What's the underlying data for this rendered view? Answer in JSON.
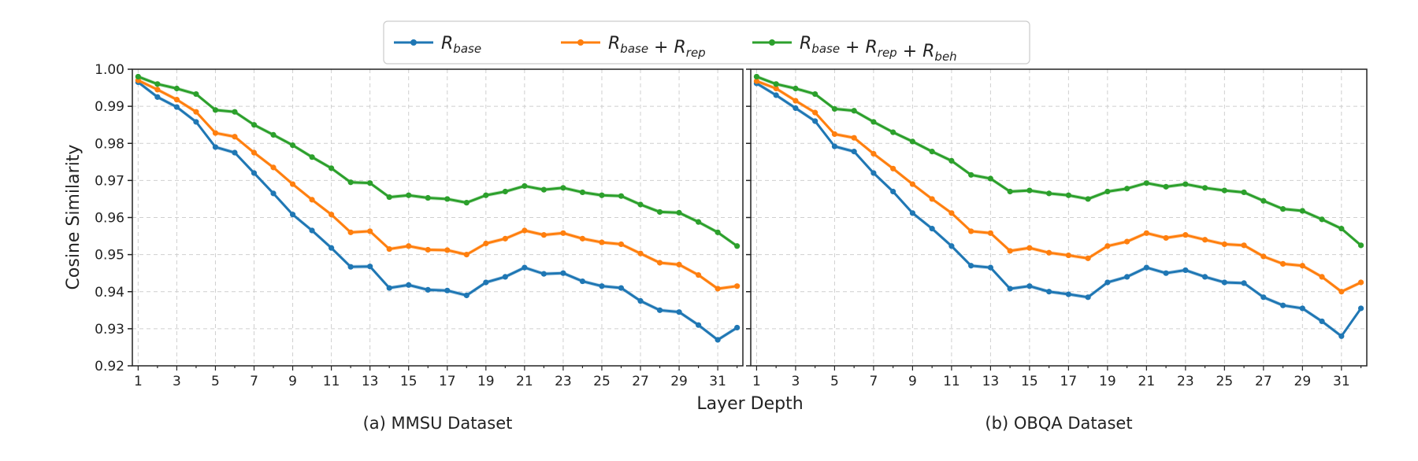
{
  "chart_data": {
    "type": "line",
    "ylabel": "Cosine Similarity",
    "xlabel": "Layer Depth",
    "ylim": [
      0.92,
      1.0
    ],
    "y_ticks": [
      "0.92",
      "0.93",
      "0.94",
      "0.95",
      "0.96",
      "0.97",
      "0.98",
      "0.99",
      "1.00"
    ],
    "x_ticks": [
      "1",
      "3",
      "5",
      "7",
      "9",
      "11",
      "13",
      "15",
      "17",
      "19",
      "21",
      "23",
      "25",
      "27",
      "29",
      "31"
    ],
    "grid": true,
    "legend_position": "top-center",
    "legend": [
      {
        "base": "R",
        "sub": "base",
        "parts": []
      },
      {
        "base": "R",
        "sub": "base",
        "parts": [
          {
            "op": "+",
            "base": "R",
            "sub": "rep"
          }
        ]
      },
      {
        "base": "R",
        "sub": "base",
        "parts": [
          {
            "op": "+",
            "base": "R",
            "sub": "rep"
          },
          {
            "op": "+",
            "base": "R",
            "sub": "beh"
          }
        ]
      }
    ],
    "colors": [
      "#1f77b4",
      "#ff7f0e",
      "#2ca02c"
    ],
    "x": [
      1,
      2,
      3,
      4,
      5,
      6,
      7,
      8,
      9,
      10,
      11,
      12,
      13,
      14,
      15,
      16,
      17,
      18,
      19,
      20,
      21,
      22,
      23,
      24,
      25,
      26,
      27,
      28,
      29,
      30,
      31,
      32
    ],
    "panels": [
      {
        "caption": "(a) MMSU Dataset",
        "series": [
          {
            "values": [
              0.9965,
              0.9925,
              0.9898,
              0.9858,
              0.979,
              0.9775,
              0.972,
              0.9665,
              0.9608,
              0.9565,
              0.9518,
              0.9467,
              0.9468,
              0.941,
              0.9418,
              0.9405,
              0.9403,
              0.939,
              0.9425,
              0.944,
              0.9465,
              0.9448,
              0.945,
              0.9428,
              0.9415,
              0.941,
              0.9375,
              0.935,
              0.9345,
              0.931,
              0.927,
              0.9303
            ]
          },
          {
            "values": [
              0.997,
              0.9945,
              0.9918,
              0.9885,
              0.9828,
              0.9818,
              0.9775,
              0.9735,
              0.969,
              0.9648,
              0.9608,
              0.956,
              0.9563,
              0.9515,
              0.9523,
              0.9513,
              0.9512,
              0.95,
              0.953,
              0.9543,
              0.9565,
              0.9553,
              0.9558,
              0.9543,
              0.9533,
              0.9528,
              0.9503,
              0.9478,
              0.9473,
              0.9445,
              0.9408,
              0.9415
            ]
          },
          {
            "values": [
              0.998,
              0.996,
              0.9948,
              0.9933,
              0.989,
              0.9885,
              0.985,
              0.9823,
              0.9795,
              0.9763,
              0.9733,
              0.9695,
              0.9693,
              0.9655,
              0.966,
              0.9653,
              0.965,
              0.964,
              0.966,
              0.967,
              0.9685,
              0.9675,
              0.968,
              0.9668,
              0.966,
              0.9658,
              0.9635,
              0.9615,
              0.9613,
              0.9588,
              0.956,
              0.9523
            ]
          }
        ]
      },
      {
        "caption": "(b) OBQA Dataset",
        "series": [
          {
            "values": [
              0.9962,
              0.993,
              0.9895,
              0.986,
              0.9792,
              0.9778,
              0.972,
              0.967,
              0.9612,
              0.957,
              0.9523,
              0.947,
              0.9465,
              0.9408,
              0.9415,
              0.94,
              0.9393,
              0.9385,
              0.9425,
              0.944,
              0.9465,
              0.945,
              0.9458,
              0.944,
              0.9425,
              0.9423,
              0.9385,
              0.9363,
              0.9355,
              0.932,
              0.928,
              0.9355
            ]
          },
          {
            "values": [
              0.9968,
              0.9948,
              0.9915,
              0.9883,
              0.9825,
              0.9815,
              0.9772,
              0.9732,
              0.969,
              0.965,
              0.9612,
              0.9563,
              0.9558,
              0.951,
              0.9518,
              0.9505,
              0.9498,
              0.949,
              0.9523,
              0.9535,
              0.9558,
              0.9545,
              0.9553,
              0.954,
              0.9528,
              0.9525,
              0.9495,
              0.9475,
              0.947,
              0.944,
              0.94,
              0.9425
            ]
          },
          {
            "values": [
              0.998,
              0.996,
              0.9948,
              0.9933,
              0.9893,
              0.9888,
              0.9858,
              0.983,
              0.9805,
              0.9778,
              0.9753,
              0.9715,
              0.9705,
              0.967,
              0.9673,
              0.9665,
              0.966,
              0.965,
              0.967,
              0.9678,
              0.9693,
              0.9683,
              0.969,
              0.968,
              0.9673,
              0.9668,
              0.9645,
              0.9623,
              0.9618,
              0.9595,
              0.957,
              0.9525
            ]
          }
        ]
      }
    ]
  }
}
